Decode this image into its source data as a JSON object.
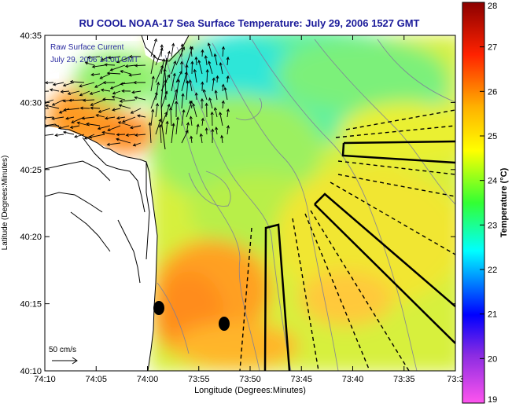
{
  "title": "RU COOL  NOAA-17  Sea Surface Temperature:  July 29, 2006 1527 GMT",
  "overlay": {
    "line1": "Raw Surface Current",
    "line2": "July 29, 2006 14:00 GMT"
  },
  "scale_label": "50 cm/s",
  "axes": {
    "xlabel": "Longitude (Degrees:Minutes)",
    "ylabel": "Latitude (Degrees:Minutes)",
    "x_ticks": [
      "74:10",
      "74:05",
      "74:00",
      "73:55",
      "73:50",
      "73:45",
      "73:40",
      "73:35",
      "73:3"
    ],
    "y_ticks": [
      "40:35",
      "40:30",
      "40:25",
      "40:20",
      "40:15",
      "40:10"
    ]
  },
  "colorbar": {
    "label": "Temperature (°C)",
    "min": 19,
    "max": 28,
    "ticks": [
      "28",
      "27",
      "26",
      "25",
      "24",
      "23",
      "22",
      "21",
      "20",
      "19"
    ],
    "colors": [
      "#ff55ee",
      "#8a2be2",
      "#0000ff",
      "#00ffff",
      "#00ff00",
      "#ffff00",
      "#ffa500",
      "#ff0000",
      "#8b0000"
    ]
  }
}
